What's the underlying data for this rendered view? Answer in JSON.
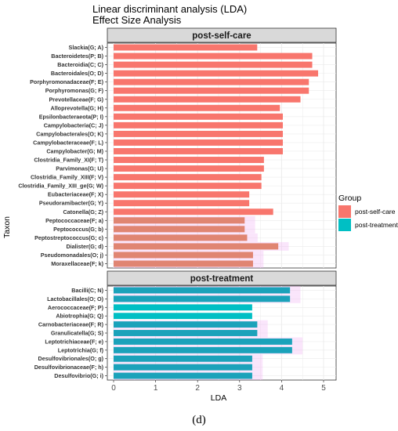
{
  "chart_data": {
    "type": "bar",
    "orientation": "horizontal",
    "title": "Linear discriminant analysis (LDA)",
    "subtitle": "Effect Size Analysis",
    "xlabel": "LDA",
    "ylabel": "Taxon",
    "xlim": [
      0,
      5
    ],
    "xticks": [
      "0",
      "1",
      "2",
      "3",
      "4",
      "5"
    ],
    "grid": true,
    "legend": {
      "title": "Group",
      "position": "right",
      "entries": [
        "post-self-care",
        "post-treatment"
      ]
    },
    "caption": "(d)",
    "colors": {
      "post-self-care": "#f8766d",
      "post-treatment": "#00bfc4",
      "highlight": "#f0b4f4"
    },
    "panels": [
      {
        "name": "post-self-care",
        "categories": [
          "Slackia(G; A)",
          "Bacteroidetes(P; B)",
          "Bacteroidia(C; C)",
          "Bacteroidales(O; D)",
          "Porphyromonadaceae(F; E)",
          "Porphyromonas(G; F)",
          "Prevotellaceae(F; G)",
          "Alloprevotella(G; H)",
          "Epsilonbacteraeota(P; I)",
          "Campylobacteria(C; J)",
          "Campylobacterales(O; K)",
          "Campylobacteraceae(F; L)",
          "Campylobacter(G; M)",
          "Clostridia_Family_XI(F; T)",
          "Parvimonas(G; U)",
          "Clostridia_Family_XIII(F; V)",
          "Clostridia_Family_XIII_ge(G; W)",
          "Eubacteriaceae(F; X)",
          "Pseudoramibacter(G; Y)",
          "Catonella(G; Z)",
          "Peptococcaceae(F; a)",
          "Peptococcus(G; b)",
          "Peptostreptococcus(G; c)",
          "Dialister(G; d)",
          "Pseudomonadales(O; j)",
          "Moraxellaceae(F; k)"
        ],
        "values": [
          3.42,
          4.73,
          4.73,
          4.87,
          4.65,
          4.65,
          4.45,
          3.96,
          4.03,
          4.03,
          4.03,
          4.03,
          4.03,
          3.58,
          3.58,
          3.52,
          3.52,
          3.23,
          3.23,
          3.8,
          3.12,
          3.12,
          3.18,
          3.92,
          3.32,
          3.32
        ]
      },
      {
        "name": "post-treatment",
        "categories": [
          "Bacilli(C; N)",
          "Lactobacillales(O; O)",
          "Aerococcaceae(F; P)",
          "Abiotrophia(G; Q)",
          "Carnobacteriaceae(F; R)",
          "Granulicatella(G; S)",
          "Leptotrichiaceae(F; e)",
          "Leptotrichia(G; f)",
          "Desulfovibrionales(O; g)",
          "Desulfovibrionaceae(F; h)",
          "Desulfovibrio(G; i)"
        ],
        "values": [
          4.2,
          4.2,
          3.3,
          3.3,
          3.42,
          3.42,
          4.25,
          4.25,
          3.3,
          3.3,
          3.3
        ]
      }
    ]
  }
}
